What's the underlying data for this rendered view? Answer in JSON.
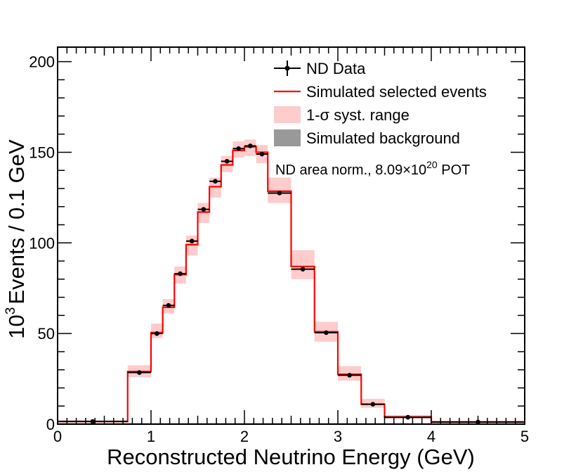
{
  "chart_data": {
    "type": "histogram",
    "xlabel": "Reconstructed Neutrino Energy (GeV)",
    "ylabel": "Events / 0.1 GeV",
    "ylabel_prefix": "10",
    "ylabel_exp": "3",
    "xlim": [
      0,
      5
    ],
    "ylim": [
      0,
      208
    ],
    "xticks": [
      0,
      1,
      2,
      3,
      4,
      5
    ],
    "yticks": [
      0,
      50,
      100,
      150,
      200
    ],
    "bins": [
      {
        "lo": 0.0,
        "hi": 0.75,
        "sim": 1.5,
        "syst_lo": 1.0,
        "syst_hi": 2.0,
        "data": 1.5
      },
      {
        "lo": 0.75,
        "hi": 1.0,
        "sim": 29.0,
        "syst_lo": 26.0,
        "syst_hi": 32.5,
        "data": 28.5
      },
      {
        "lo": 1.0,
        "hi": 1.125,
        "sim": 50.5,
        "syst_lo": 47.5,
        "syst_hi": 55.5,
        "data": 50.0
      },
      {
        "lo": 1.125,
        "hi": 1.25,
        "sim": 64.5,
        "syst_lo": 61.0,
        "syst_hi": 69.0,
        "data": 65.5
      },
      {
        "lo": 1.25,
        "hi": 1.375,
        "sim": 82.5,
        "syst_lo": 77.5,
        "syst_hi": 87.0,
        "data": 83.0
      },
      {
        "lo": 1.375,
        "hi": 1.5,
        "sim": 99.0,
        "syst_lo": 93.0,
        "syst_hi": 104.0,
        "data": 101.0
      },
      {
        "lo": 1.5,
        "hi": 1.625,
        "sim": 117.0,
        "syst_lo": 111.0,
        "syst_hi": 122.0,
        "data": 118.5
      },
      {
        "lo": 1.625,
        "hi": 1.75,
        "sim": 131.0,
        "syst_lo": 125.0,
        "syst_hi": 136.0,
        "data": 134.0
      },
      {
        "lo": 1.75,
        "hi": 1.875,
        "sim": 143.0,
        "syst_lo": 139.0,
        "syst_hi": 148.0,
        "data": 145.0
      },
      {
        "lo": 1.875,
        "hi": 2.0,
        "sim": 151.0,
        "syst_lo": 147.0,
        "syst_hi": 156.0,
        "data": 152.0
      },
      {
        "lo": 2.0,
        "hi": 2.125,
        "sim": 153.0,
        "syst_lo": 148.0,
        "syst_hi": 157.0,
        "data": 153.5
      },
      {
        "lo": 2.125,
        "hi": 2.25,
        "sim": 150.0,
        "syst_lo": 144.0,
        "syst_hi": 154.0,
        "data": 149.0
      },
      {
        "lo": 2.25,
        "hi": 2.5,
        "sim": 128.5,
        "syst_lo": 122.0,
        "syst_hi": 136.0,
        "data": 127.5
      },
      {
        "lo": 2.5,
        "hi": 2.75,
        "sim": 87.0,
        "syst_lo": 80.0,
        "syst_hi": 96.0,
        "data": 85.5
      },
      {
        "lo": 2.75,
        "hi": 3.0,
        "sim": 51.0,
        "syst_lo": 45.5,
        "syst_hi": 56.5,
        "data": 50.5
      },
      {
        "lo": 3.0,
        "hi": 3.25,
        "sim": 27.5,
        "syst_lo": 24.0,
        "syst_hi": 32.0,
        "data": 27.0
      },
      {
        "lo": 3.25,
        "hi": 3.5,
        "sim": 11.0,
        "syst_lo": 9.0,
        "syst_hi": 14.0,
        "data": 11.0
      },
      {
        "lo": 3.5,
        "hi": 4.0,
        "sim": 4.0,
        "syst_lo": 3.0,
        "syst_hi": 5.0,
        "data": 3.8
      },
      {
        "lo": 4.0,
        "hi": 5.0,
        "sim": 1.2,
        "syst_lo": 0.8,
        "syst_hi": 1.6,
        "data": 1.2
      }
    ],
    "legend": [
      {
        "label": "ND Data",
        "style": "marker"
      },
      {
        "label": "Simulated selected events",
        "style": "line"
      },
      {
        "label": "1-σ syst. range",
        "style": "band"
      },
      {
        "label": "Simulated background",
        "style": "fill"
      }
    ],
    "legend_position": "top-right",
    "annotation": {
      "main": "ND area norm., 8.09×10",
      "exp": "20",
      "suffix": " POT"
    },
    "colors": {
      "data": "#000000",
      "sim": "#ff0000",
      "band": "#ffcccc",
      "background": "#999999",
      "axis": "#000000"
    }
  }
}
